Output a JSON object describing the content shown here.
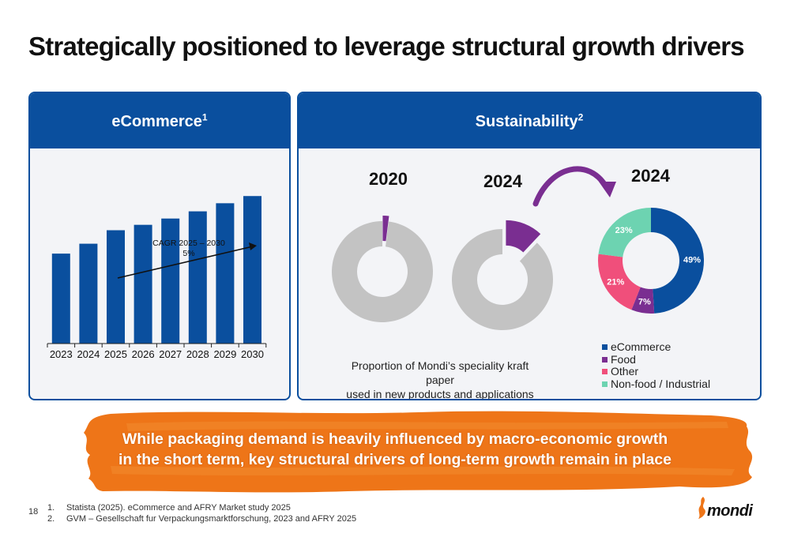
{
  "title": "Strategically positioned to leverage structural growth drivers",
  "colors": {
    "brand_blue": "#0a4f9e",
    "purple": "#7a2e91",
    "pink": "#f04f7b",
    "teal": "#6dd3b1",
    "grey": "#c3c3c3",
    "orange": "#ee7518"
  },
  "ecommerce": {
    "header": "eCommerce",
    "header_sup": "1",
    "cagr_label_line1": "CAGR 2025 – 2030",
    "cagr_label_line2": "5%"
  },
  "sustainability": {
    "header": "Sustainability",
    "header_sup": "2",
    "year_2020": "2020",
    "year_2024": "2024",
    "year_breakdown": "2024",
    "caption_line1": "Proportion of Mondi’s speciality kraft paper",
    "caption_line2": "used in new products and applications"
  },
  "chart_data": [
    {
      "type": "bar",
      "categories": [
        "2023",
        "2024",
        "2025",
        "2026",
        "2027",
        "2028",
        "2029",
        "2030"
      ],
      "values": [
        100,
        111,
        126,
        132,
        139,
        147,
        156,
        164
      ],
      "ylim": [
        0,
        180
      ],
      "grid": false,
      "annotation": "CAGR 2025 – 2030 5%"
    },
    {
      "type": "pie",
      "labels": [
        "Speciality kraft paper in new products and applications",
        "Other"
      ],
      "values": [
        2,
        98
      ],
      "year": "2020"
    },
    {
      "type": "pie",
      "labels": [
        "Speciality kraft paper in new products and applications",
        "Other"
      ],
      "values": [
        12,
        88
      ],
      "year": "2024"
    },
    {
      "type": "pie",
      "year": "2024",
      "labels": [
        "eCommerce",
        "Food",
        "Other",
        "Non-food / Industrial"
      ],
      "values": [
        49,
        7,
        21,
        23
      ],
      "value_labels": [
        "49%",
        "7%",
        "21%",
        "23%"
      ],
      "colors": [
        "#0a4f9e",
        "#7a2e91",
        "#f04f7b",
        "#6dd3b1"
      ],
      "legend_position": "bottom"
    }
  ],
  "banner": {
    "line1": "While packaging demand is heavily influenced by macro-economic growth",
    "line2": "in the short term, key structural drivers of long-term growth remain in place"
  },
  "page_number": "18",
  "footnotes": [
    {
      "num": "1.",
      "text": "Statista (2025). eCommerce and AFRY Market study 2025"
    },
    {
      "num": "2.",
      "text": "GVM – Gesellschaft fur Verpackungsmarktforschung, 2023 and AFRY 2025"
    }
  ],
  "logo": {
    "text": "mondi",
    "icon": "mondi-logo-icon"
  }
}
